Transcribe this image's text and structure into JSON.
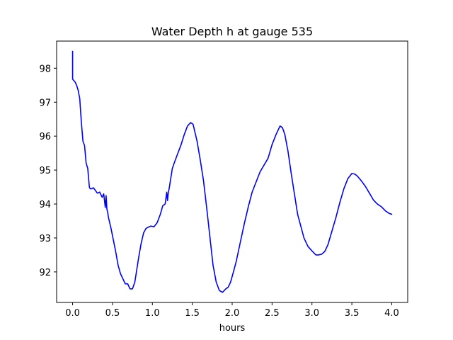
{
  "chart_data": {
    "type": "line",
    "title": "Water Depth h at gauge 535",
    "xlabel": "hours",
    "ylabel": "",
    "xlim": [
      -0.2,
      4.2
    ],
    "ylim": [
      91.1,
      98.8
    ],
    "grid": false,
    "legend": "none",
    "x_ticks": [
      0.0,
      0.5,
      1.0,
      1.5,
      2.0,
      2.5,
      3.0,
      3.5,
      4.0
    ],
    "x_tick_labels": [
      "0.0",
      "0.5",
      "1.0",
      "1.5",
      "2.0",
      "2.5",
      "3.0",
      "3.5",
      "4.0"
    ],
    "y_ticks": [
      92,
      93,
      94,
      95,
      96,
      97,
      98
    ],
    "y_tick_labels": [
      "92",
      "93",
      "94",
      "95",
      "96",
      "97",
      "98"
    ],
    "series": [
      {
        "color": "#0000ff",
        "x": [
          0.0,
          0.0,
          0.01,
          0.03,
          0.05,
          0.07,
          0.09,
          0.11,
          0.13,
          0.15,
          0.17,
          0.19,
          0.21,
          0.22,
          0.24,
          0.26,
          0.28,
          0.31,
          0.34,
          0.37,
          0.39,
          0.41,
          0.42,
          0.43,
          0.44,
          0.45,
          0.48,
          0.51,
          0.54,
          0.57,
          0.6,
          0.63,
          0.66,
          0.69,
          0.72,
          0.75,
          0.78,
          0.8,
          0.83,
          0.86,
          0.89,
          0.92,
          0.95,
          0.98,
          1.02,
          1.06,
          1.1,
          1.13,
          1.16,
          1.18,
          1.19,
          1.2,
          1.21,
          1.22,
          1.25,
          1.28,
          1.32,
          1.36,
          1.4,
          1.44,
          1.48,
          1.51,
          1.53,
          1.56,
          1.6,
          1.64,
          1.68,
          1.72,
          1.76,
          1.8,
          1.84,
          1.88,
          1.92,
          1.95,
          1.98,
          2.01,
          2.05,
          2.1,
          2.15,
          2.2,
          2.25,
          2.3,
          2.35,
          2.4,
          2.45,
          2.5,
          2.55,
          2.6,
          2.63,
          2.66,
          2.7,
          2.74,
          2.78,
          2.82,
          2.86,
          2.9,
          2.95,
          3.0,
          3.05,
          3.08,
          3.12,
          3.16,
          3.2,
          3.25,
          3.3,
          3.35,
          3.4,
          3.45,
          3.5,
          3.54,
          3.57,
          3.62,
          3.67,
          3.72,
          3.77,
          3.82,
          3.87,
          3.92,
          3.97,
          4.0
        ],
        "y": [
          98.5,
          97.68,
          97.65,
          97.6,
          97.5,
          97.35,
          97.1,
          96.4,
          95.85,
          95.72,
          95.2,
          95.05,
          94.5,
          94.45,
          94.45,
          94.48,
          94.42,
          94.32,
          94.35,
          94.2,
          94.3,
          93.9,
          94.25,
          93.85,
          93.75,
          93.6,
          93.3,
          92.95,
          92.6,
          92.2,
          91.95,
          91.8,
          91.65,
          91.65,
          91.5,
          91.5,
          91.7,
          92.0,
          92.45,
          92.85,
          93.15,
          93.28,
          93.32,
          93.35,
          93.33,
          93.45,
          93.7,
          93.95,
          94.0,
          94.35,
          94.1,
          94.35,
          94.45,
          94.6,
          95.05,
          95.25,
          95.5,
          95.75,
          96.05,
          96.3,
          96.4,
          96.35,
          96.15,
          95.85,
          95.3,
          94.7,
          93.9,
          93.05,
          92.2,
          91.7,
          91.45,
          91.4,
          91.5,
          91.55,
          91.7,
          91.95,
          92.3,
          92.85,
          93.4,
          93.9,
          94.35,
          94.65,
          94.95,
          95.15,
          95.35,
          95.75,
          96.05,
          96.3,
          96.25,
          96.05,
          95.55,
          94.9,
          94.3,
          93.7,
          93.35,
          93.0,
          92.75,
          92.62,
          92.5,
          92.5,
          92.52,
          92.6,
          92.8,
          93.2,
          93.6,
          94.05,
          94.45,
          94.75,
          94.9,
          94.88,
          94.82,
          94.68,
          94.52,
          94.32,
          94.12,
          94.0,
          93.92,
          93.8,
          93.72,
          93.7
        ]
      }
    ]
  }
}
